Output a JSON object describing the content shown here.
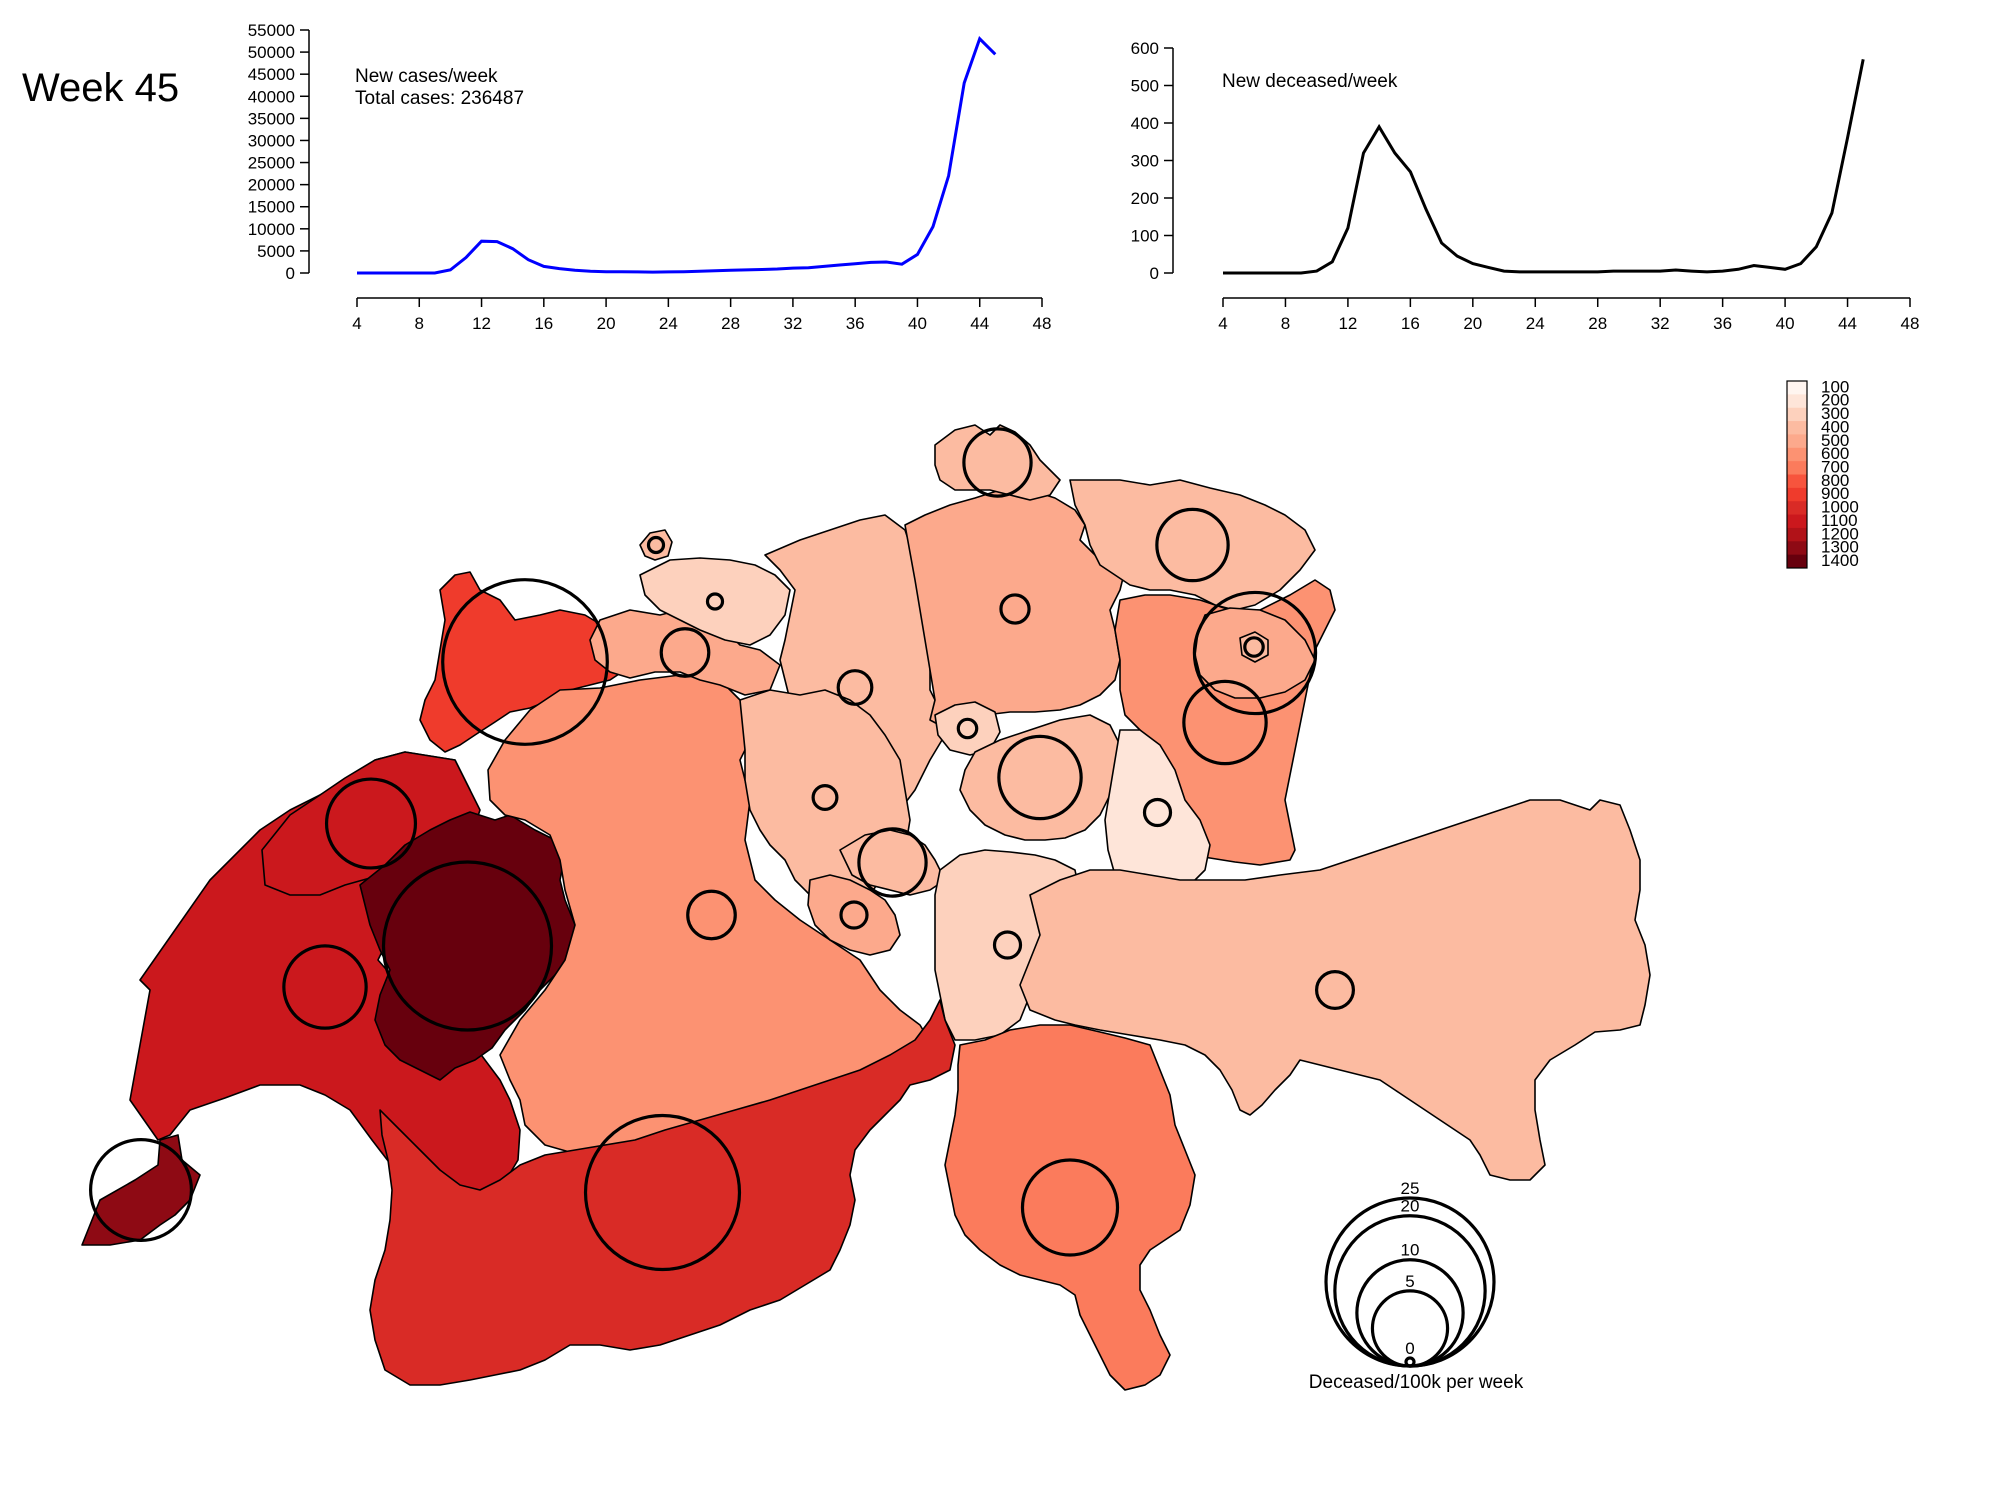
{
  "title": "Week 45",
  "chart_data": [
    {
      "type": "line",
      "name": "cases",
      "annotation_lines": [
        "New cases/week",
        "Total cases: 236487"
      ],
      "x": [
        4,
        5,
        6,
        7,
        8,
        9,
        10,
        11,
        12,
        13,
        14,
        15,
        16,
        17,
        18,
        19,
        20,
        21,
        22,
        23,
        24,
        25,
        26,
        27,
        28,
        29,
        30,
        31,
        32,
        33,
        34,
        35,
        36,
        37,
        38,
        39,
        40,
        41,
        42,
        43,
        44,
        45
      ],
      "values": [
        0,
        0,
        0,
        0,
        0,
        0,
        700,
        3500,
        7200,
        7100,
        5500,
        3000,
        1500,
        1000,
        600,
        400,
        300,
        300,
        250,
        200,
        250,
        300,
        400,
        500,
        600,
        700,
        800,
        900,
        1100,
        1200,
        1500,
        1800,
        2100,
        2400,
        2500,
        2000,
        4200,
        10500,
        22000,
        43000,
        53000,
        49500
      ],
      "xticks": [
        "4",
        "8",
        "12",
        "16",
        "20",
        "24",
        "28",
        "32",
        "36",
        "40",
        "44",
        "48"
      ],
      "yticks": [
        "0",
        "5000",
        "10000",
        "15000",
        "20000",
        "25000",
        "30000",
        "35000",
        "40000",
        "45000",
        "50000",
        "55000"
      ],
      "xlim": [
        4,
        48
      ],
      "ylim": [
        0,
        55000
      ],
      "color": "#0000ff"
    },
    {
      "type": "line",
      "name": "deceased",
      "annotation_lines": [
        "New deceased/week"
      ],
      "x": [
        4,
        5,
        6,
        7,
        8,
        9,
        10,
        11,
        12,
        13,
        14,
        15,
        16,
        17,
        18,
        19,
        20,
        21,
        22,
        23,
        24,
        25,
        26,
        27,
        28,
        29,
        30,
        31,
        32,
        33,
        34,
        35,
        36,
        37,
        38,
        39,
        40,
        41,
        42,
        43,
        44,
        45
      ],
      "values": [
        0,
        0,
        0,
        0,
        0,
        0,
        5,
        30,
        120,
        320,
        390,
        320,
        270,
        170,
        80,
        45,
        25,
        15,
        5,
        3,
        3,
        3,
        3,
        3,
        3,
        5,
        5,
        5,
        5,
        8,
        5,
        3,
        5,
        10,
        20,
        15,
        10,
        25,
        70,
        160,
        360,
        570
      ],
      "xticks": [
        "4",
        "8",
        "12",
        "16",
        "20",
        "24",
        "28",
        "32",
        "36",
        "40",
        "44",
        "48"
      ],
      "yticks": [
        "0",
        "100",
        "200",
        "300",
        "400",
        "500",
        "600"
      ],
      "xlim": [
        4,
        48
      ],
      "ylim": [
        0,
        600
      ],
      "color": "#000000"
    }
  ],
  "map": {
    "color_legend": [
      "100",
      "200",
      "300",
      "400",
      "500",
      "600",
      "700",
      "800",
      "900",
      "1000",
      "1100",
      "1200",
      "1300",
      "1400"
    ],
    "color_scale": [
      "#fff5f0",
      "#fee5d9",
      "#fdd1bd",
      "#fcbba1",
      "#fca98c",
      "#fc9272",
      "#fb7b5c",
      "#f7543d",
      "#ef3b2c",
      "#d92b26",
      "#cb181d",
      "#b11218",
      "#8e0a14",
      "#67000d"
    ],
    "bubble_legend_labels": [
      "25",
      "20",
      "10",
      "5",
      "0"
    ],
    "bubble_legend_values": [
      25,
      20,
      10,
      5,
      0
    ],
    "bubble_legend_title": "Deceased/100k per week",
    "cantons": [
      {
        "id": "GE",
        "incidence": 1250,
        "deceased_per100k": 9
      },
      {
        "id": "VD",
        "incidence": 1100,
        "deceased_per100k": 6
      },
      {
        "id": "FR",
        "incidence": 1400,
        "deceased_per100k": 25
      },
      {
        "id": "NE",
        "incidence": 1050,
        "deceased_per100k": 7
      },
      {
        "id": "JU",
        "incidence": 900,
        "deceased_per100k": 24
      },
      {
        "id": "VS",
        "incidence": 950,
        "deceased_per100k": 21
      },
      {
        "id": "BE",
        "incidence": 550,
        "deceased_per100k": 2
      },
      {
        "id": "SO",
        "incidence": 450,
        "deceased_per100k": 2
      },
      {
        "id": "BL",
        "incidence": 300,
        "deceased_per100k": 0.2
      },
      {
        "id": "BS",
        "incidence": 400,
        "deceased_per100k": 0.2
      },
      {
        "id": "AG",
        "incidence": 400,
        "deceased_per100k": 1
      },
      {
        "id": "LU",
        "incidence": 350,
        "deceased_per100k": 0.5
      },
      {
        "id": "ZH",
        "incidence": 450,
        "deceased_per100k": 0.7
      },
      {
        "id": "SH",
        "incidence": 350,
        "deceased_per100k": 4
      },
      {
        "id": "TG",
        "incidence": 400,
        "deceased_per100k": 4.5
      },
      {
        "id": "SG",
        "incidence": 550,
        "deceased_per100k": 6
      },
      {
        "id": "AR",
        "incidence": 450,
        "deceased_per100k": 13
      },
      {
        "id": "AI",
        "incidence": 350,
        "deceased_per100k": 0.3
      },
      {
        "id": "ZG",
        "incidence": 300,
        "deceased_per100k": 0.3
      },
      {
        "id": "SZ",
        "incidence": 400,
        "deceased_per100k": 6
      },
      {
        "id": "GL",
        "incidence": 200,
        "deceased_per100k": 0.6
      },
      {
        "id": "NW",
        "incidence": 350,
        "deceased_per100k": 4
      },
      {
        "id": "OW",
        "incidence": 450,
        "deceased_per100k": 0.6
      },
      {
        "id": "UR",
        "incidence": 300,
        "deceased_per100k": 0.6
      },
      {
        "id": "GR",
        "incidence": 350,
        "deceased_per100k": 1.2
      },
      {
        "id": "TI",
        "incidence": 700,
        "deceased_per100k": 8
      }
    ]
  }
}
